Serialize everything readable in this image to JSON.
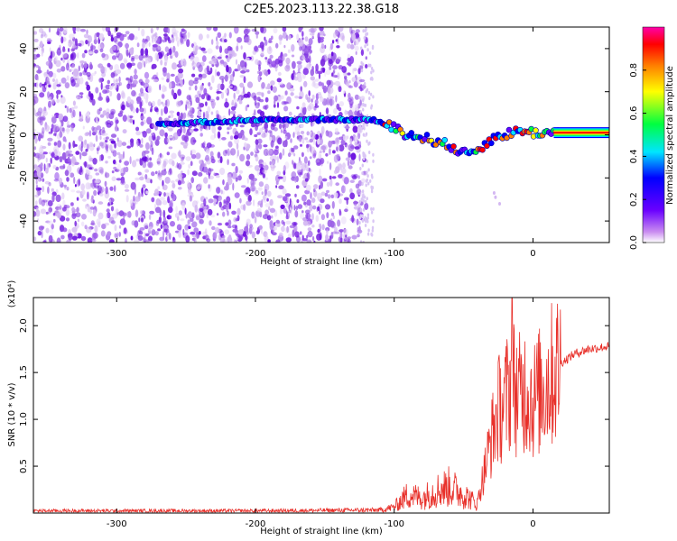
{
  "title": "C2E5.2023.113.22.38.G18",
  "colors": {
    "spectrum_low": "#8a2be2",
    "spectrum_ridge": "#00e5ff",
    "snr_line": "#e8302a",
    "axis": "#000000"
  },
  "chart_data": [
    {
      "type": "heatmap",
      "title": "C2E5.2023.113.22.38.G18",
      "xlabel": "Height of straight line (km)",
      "ylabel": "Frequency (Hz)",
      "xlim": [
        -360,
        55
      ],
      "ylim": [
        -50,
        50
      ],
      "xticks": [
        -300,
        -200,
        -100,
        0
      ],
      "yticks": [
        -40,
        -20,
        0,
        20,
        40
      ],
      "grid": false,
      "colorbar": {
        "label": "Normalized spectral amplitude",
        "range": [
          0.0,
          1.0
        ],
        "ticks": [
          0.0,
          0.2,
          0.4,
          0.6,
          0.8
        ],
        "colormap": "rainbow"
      },
      "ridge": {
        "x": [
          -270,
          -230,
          -200,
          -160,
          -130,
          -115,
          -100,
          -90,
          -75,
          -60,
          -50,
          -40,
          -30,
          -20,
          -10,
          0,
          20,
          40,
          55
        ],
        "y": [
          5,
          6,
          7,
          7,
          7,
          7,
          3,
          0,
          -2,
          -5,
          -9,
          -7,
          -2,
          0,
          2,
          1,
          1,
          1,
          1
        ]
      }
    },
    {
      "type": "line",
      "xlabel": "Height of straight line (km)",
      "ylabel": "SNR (10 * v/v)",
      "y_multiplier": "(x10⁴)",
      "xlim": [
        -360,
        55
      ],
      "ylim": [
        0,
        2.3
      ],
      "xticks": [
        -300,
        -200,
        -100,
        0
      ],
      "yticks": [
        0.5,
        1.0,
        1.5,
        2.0
      ],
      "grid": false,
      "series": [
        {
          "x": [
            -360,
            -300,
            -200,
            -110,
            -100,
            -90,
            -80,
            -70,
            -60,
            -50,
            -40,
            -35,
            -30,
            -25,
            -20,
            -15,
            -10,
            -5,
            0,
            10,
            20,
            30,
            40,
            55
          ],
          "y": [
            0.03,
            0.03,
            0.03,
            0.04,
            0.08,
            0.25,
            0.2,
            0.3,
            0.35,
            0.25,
            0.12,
            0.45,
            0.8,
            1.1,
            1.2,
            1.4,
            1.25,
            1.35,
            1.2,
            1.4,
            1.6,
            1.7,
            1.75,
            1.78
          ],
          "spike": {
            "x": -15,
            "y": 2.3
          }
        }
      ]
    }
  ]
}
